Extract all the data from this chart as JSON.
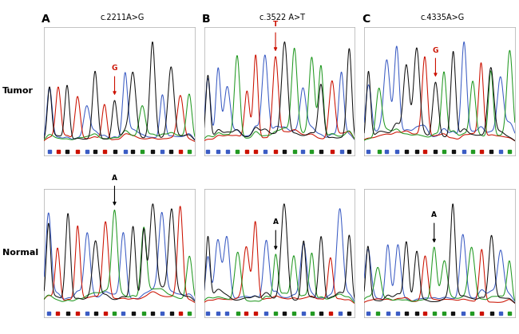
{
  "panels": [
    {
      "label": "A",
      "title": "c.2211A>G",
      "tumor_mut": "G",
      "mut_color": "red"
    },
    {
      "label": "B",
      "title": "c.3522 A>T",
      "tumor_mut": "T",
      "mut_color": "red"
    },
    {
      "label": "C",
      "title": "c.4335A>G",
      "tumor_mut": "G",
      "mut_color": "red"
    }
  ],
  "row_labels": [
    "Tumor",
    "Normal"
  ],
  "c_blue": "#3B5CC4",
  "c_red": "#CC1100",
  "c_black": "#111111",
  "c_green": "#229922",
  "bg": "#ffffff",
  "base_sq_colors": {
    "A": "#229922",
    "C": "#3B5CC4",
    "G": "#111111",
    "T": "#CC1100"
  }
}
